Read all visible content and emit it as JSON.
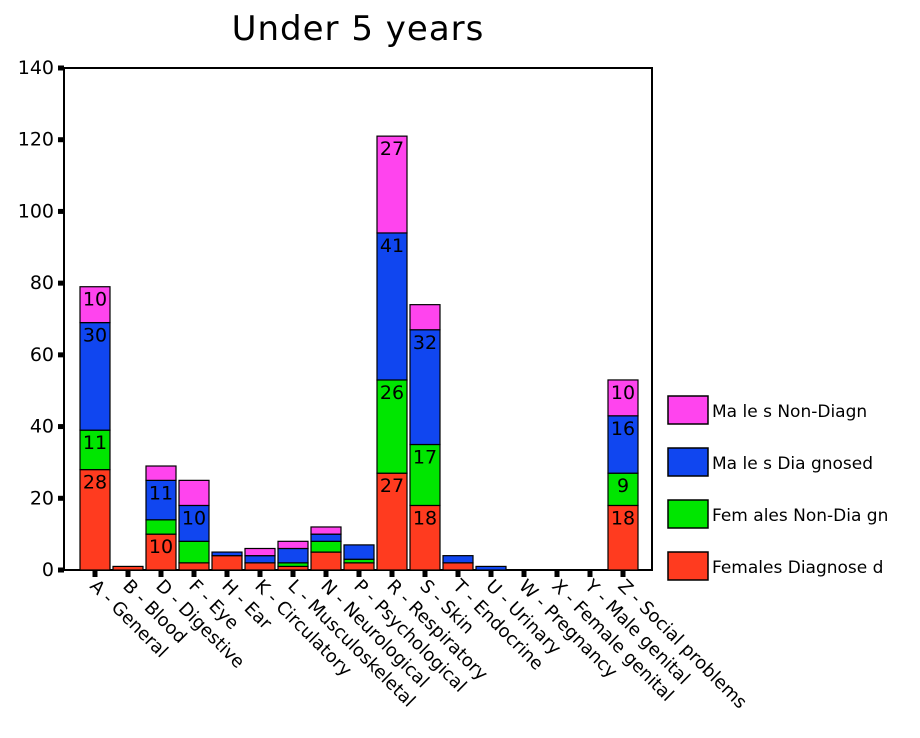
{
  "chart_data": {
    "type": "bar",
    "stacked": true,
    "title": "Under 5 years",
    "xlabel": "",
    "ylabel": "",
    "ylim": [
      0,
      140
    ],
    "yticks": [
      0,
      20,
      40,
      60,
      80,
      100,
      120,
      140
    ],
    "grid": false,
    "legend_position": "right",
    "categories": [
      "A - General",
      "B - Blood",
      "D - Digestive",
      "F - Eye",
      "H - Ear",
      "K - Circulatory",
      "L - Musculoskeletal",
      "N - Neurological",
      "P - Psychological",
      "R - Respiratory",
      "S - Skin",
      "T - Endocrine",
      "U - Urinary",
      "W - Pregnancy",
      "X - Female genital",
      "Y - Male genital",
      "Z - Social problems"
    ],
    "series": [
      {
        "name": "Females Diagnose d",
        "color": "#ff3b1f",
        "values": [
          28,
          1,
          10,
          2,
          4,
          2,
          1,
          5,
          2,
          27,
          18,
          2,
          0,
          0,
          0,
          0,
          18
        ],
        "labels": [
          "28",
          "",
          "10",
          "",
          "",
          "",
          "",
          "",
          "",
          "27",
          "18",
          "",
          "",
          "",
          "",
          "",
          "18"
        ]
      },
      {
        "name": "Fem ales Non-Dia gn",
        "color": "#00e600",
        "values": [
          11,
          0,
          4,
          6,
          0,
          0,
          1,
          3,
          1,
          26,
          17,
          0,
          0,
          0,
          0,
          0,
          9
        ],
        "labels": [
          "11",
          "",
          "",
          "",
          "",
          "",
          "",
          "",
          "",
          "26",
          "17",
          "",
          "",
          "",
          "",
          "",
          "9"
        ]
      },
      {
        "name": "Ma le s Dia gnosed",
        "color": "#1046f0",
        "values": [
          30,
          0,
          11,
          10,
          1,
          2,
          4,
          2,
          4,
          41,
          32,
          2,
          1,
          0,
          0,
          0,
          16
        ],
        "labels": [
          "30",
          "",
          "11",
          "10",
          "",
          "",
          "",
          "",
          "",
          "41",
          "32",
          "",
          "",
          "",
          "",
          "",
          "16"
        ]
      },
      {
        "name": "Ma le s Non-Diagn",
        "color": "#ff44ee",
        "values": [
          10,
          0,
          4,
          7,
          0,
          2,
          2,
          2,
          0,
          27,
          7,
          0,
          0,
          0,
          0,
          0,
          10
        ],
        "labels": [
          "10",
          "",
          "",
          "",
          "",
          "",
          "",
          "",
          "",
          "27",
          "",
          "",
          "",
          "",
          "",
          "",
          "10"
        ]
      }
    ]
  }
}
